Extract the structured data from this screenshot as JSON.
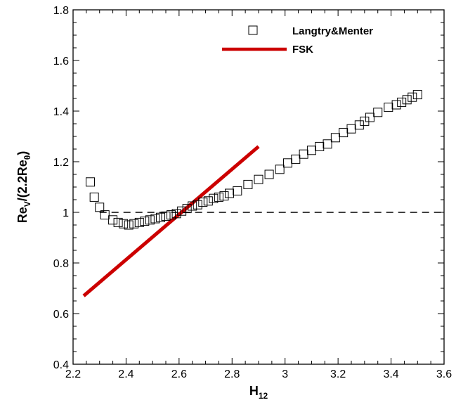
{
  "chart_data": {
    "type": "scatter",
    "xlabel": {
      "main": "H",
      "sub": "12"
    },
    "ylabel": {
      "p1": "Re",
      "sub1": "V",
      "p2": "/(2.2Re",
      "sub2": "θ",
      "p3": ")"
    },
    "xlim": [
      2.2,
      3.6
    ],
    "ylim": [
      0.4,
      1.8
    ],
    "xticks": [
      "2.2",
      "2.4",
      "2.6",
      "2.8",
      "3",
      "3.2",
      "3.4",
      "3.6"
    ],
    "yticks": [
      "0.4",
      "0.6",
      "0.8",
      "1",
      "1.2",
      "1.4",
      "1.6",
      "1.8"
    ],
    "grid": false,
    "legend_position": "top-right",
    "reference_line": {
      "y": 1.0,
      "style": "dashed",
      "color": "#000000"
    },
    "series": [
      {
        "name": "Langtry&Menter",
        "marker": "open-square",
        "color": "#000000",
        "x": [
          2.265,
          2.28,
          2.3,
          2.32,
          2.35,
          2.37,
          2.39,
          2.41,
          2.43,
          2.45,
          2.47,
          2.49,
          2.51,
          2.53,
          2.55,
          2.57,
          2.59,
          2.61,
          2.63,
          2.65,
          2.67,
          2.69,
          2.71,
          2.73,
          2.75,
          2.77,
          2.79,
          2.82,
          2.86,
          2.9,
          2.94,
          2.98,
          3.01,
          3.04,
          3.07,
          3.1,
          3.13,
          3.16,
          3.19,
          3.22,
          3.25,
          3.28,
          3.3,
          3.32,
          3.35,
          3.39,
          3.42,
          3.44,
          3.46,
          3.48,
          3.5
        ],
        "y": [
          1.12,
          1.06,
          1.02,
          0.99,
          0.97,
          0.96,
          0.955,
          0.95,
          0.955,
          0.96,
          0.965,
          0.97,
          0.975,
          0.98,
          0.985,
          0.99,
          0.995,
          1.005,
          1.015,
          1.025,
          1.03,
          1.04,
          1.045,
          1.055,
          1.06,
          1.065,
          1.075,
          1.085,
          1.11,
          1.13,
          1.15,
          1.17,
          1.195,
          1.21,
          1.23,
          1.245,
          1.26,
          1.27,
          1.295,
          1.315,
          1.33,
          1.345,
          1.36,
          1.375,
          1.395,
          1.415,
          1.425,
          1.435,
          1.445,
          1.455,
          1.465
        ]
      },
      {
        "name": "FSK",
        "marker": "line",
        "color": "#cc0000",
        "x": [
          2.24,
          2.9
        ],
        "y": [
          0.67,
          1.26
        ]
      }
    ]
  }
}
